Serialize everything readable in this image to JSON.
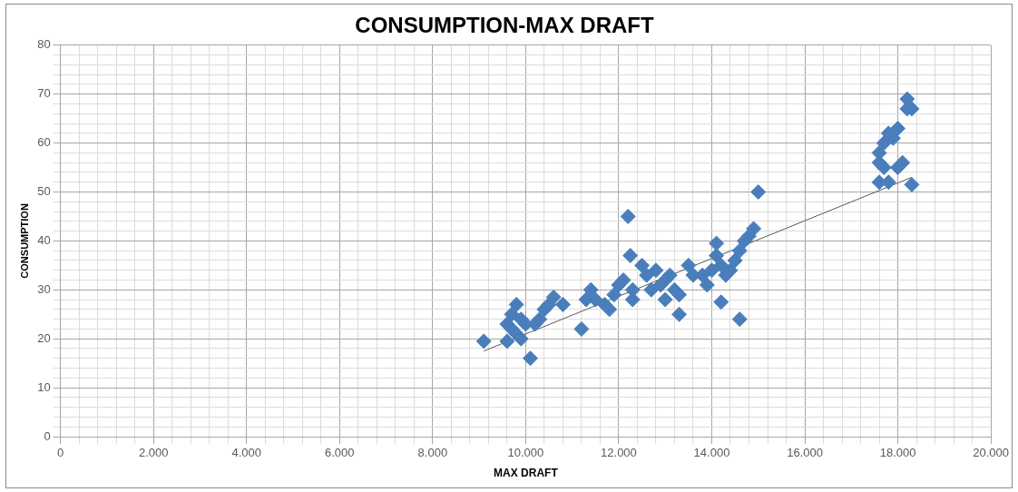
{
  "chart_data": {
    "type": "scatter",
    "title": "CONSUMPTION-MAX DRAFT",
    "xlabel": "MAX DRAFT",
    "ylabel": "CONSUMPTION",
    "xlim": [
      0,
      20000
    ],
    "xticks": [
      {
        "value": 0,
        "label": "0"
      },
      {
        "value": 2000,
        "label": "2.000"
      },
      {
        "value": 4000,
        "label": "4.000"
      },
      {
        "value": 6000,
        "label": "6.000"
      },
      {
        "value": 8000,
        "label": "8.000"
      },
      {
        "value": 10000,
        "label": "10.000"
      },
      {
        "value": 12000,
        "label": "12.000"
      },
      {
        "value": 14000,
        "label": "14.000"
      },
      {
        "value": 16000,
        "label": "16.000"
      },
      {
        "value": 18000,
        "label": "18.000"
      },
      {
        "value": 20000,
        "label": "20.000"
      }
    ],
    "ylim": [
      0,
      80
    ],
    "yticks": [
      0,
      10,
      20,
      30,
      40,
      50,
      60,
      70,
      80
    ],
    "grid": true,
    "legend": false,
    "marker": "diamond",
    "series": [
      {
        "type": "scatter",
        "color": "#4a7ebb",
        "x": [
          9100,
          9600,
          9600,
          9700,
          9800,
          9700,
          9800,
          9900,
          9900,
          10000,
          10100,
          10200,
          10300,
          10400,
          10500,
          10600,
          10800,
          11200,
          11300,
          11400,
          11500,
          11700,
          11800,
          11900,
          12000,
          12100,
          12200,
          12250,
          12300,
          12300,
          12500,
          12600,
          12700,
          12800,
          12900,
          13000,
          13000,
          13100,
          13200,
          13300,
          13300,
          13500,
          13600,
          13800,
          13900,
          14000,
          14100,
          14100,
          14200,
          14200,
          14300,
          14400,
          14500,
          14600,
          14600,
          14700,
          14800,
          14900,
          15000,
          17600,
          17600,
          17600,
          17700,
          17700,
          17800,
          17800,
          17900,
          18000,
          18000,
          18100,
          18200,
          18200,
          18300,
          18300
        ],
        "values": [
          19.5,
          19.5,
          23,
          25,
          27,
          22,
          21,
          20,
          24,
          23,
          16,
          23,
          24,
          26,
          27,
          28.5,
          27,
          22,
          28,
          30,
          28,
          27,
          26,
          29,
          31,
          32,
          45,
          37,
          28,
          30,
          35,
          33,
          30,
          34,
          31,
          28,
          32,
          33,
          30,
          25,
          29,
          35,
          33,
          33,
          31,
          34,
          39.5,
          37,
          35,
          27.5,
          33,
          34,
          36,
          24,
          38,
          40,
          41,
          42.5,
          50,
          52,
          56,
          58,
          60,
          55,
          62,
          52,
          61,
          63,
          55,
          56,
          69,
          67,
          67,
          51.5
        ]
      },
      {
        "type": "line",
        "color": "#595959",
        "marker": "none",
        "x": [
          9100,
          18300
        ],
        "values": [
          17.5,
          53
        ]
      }
    ]
  }
}
